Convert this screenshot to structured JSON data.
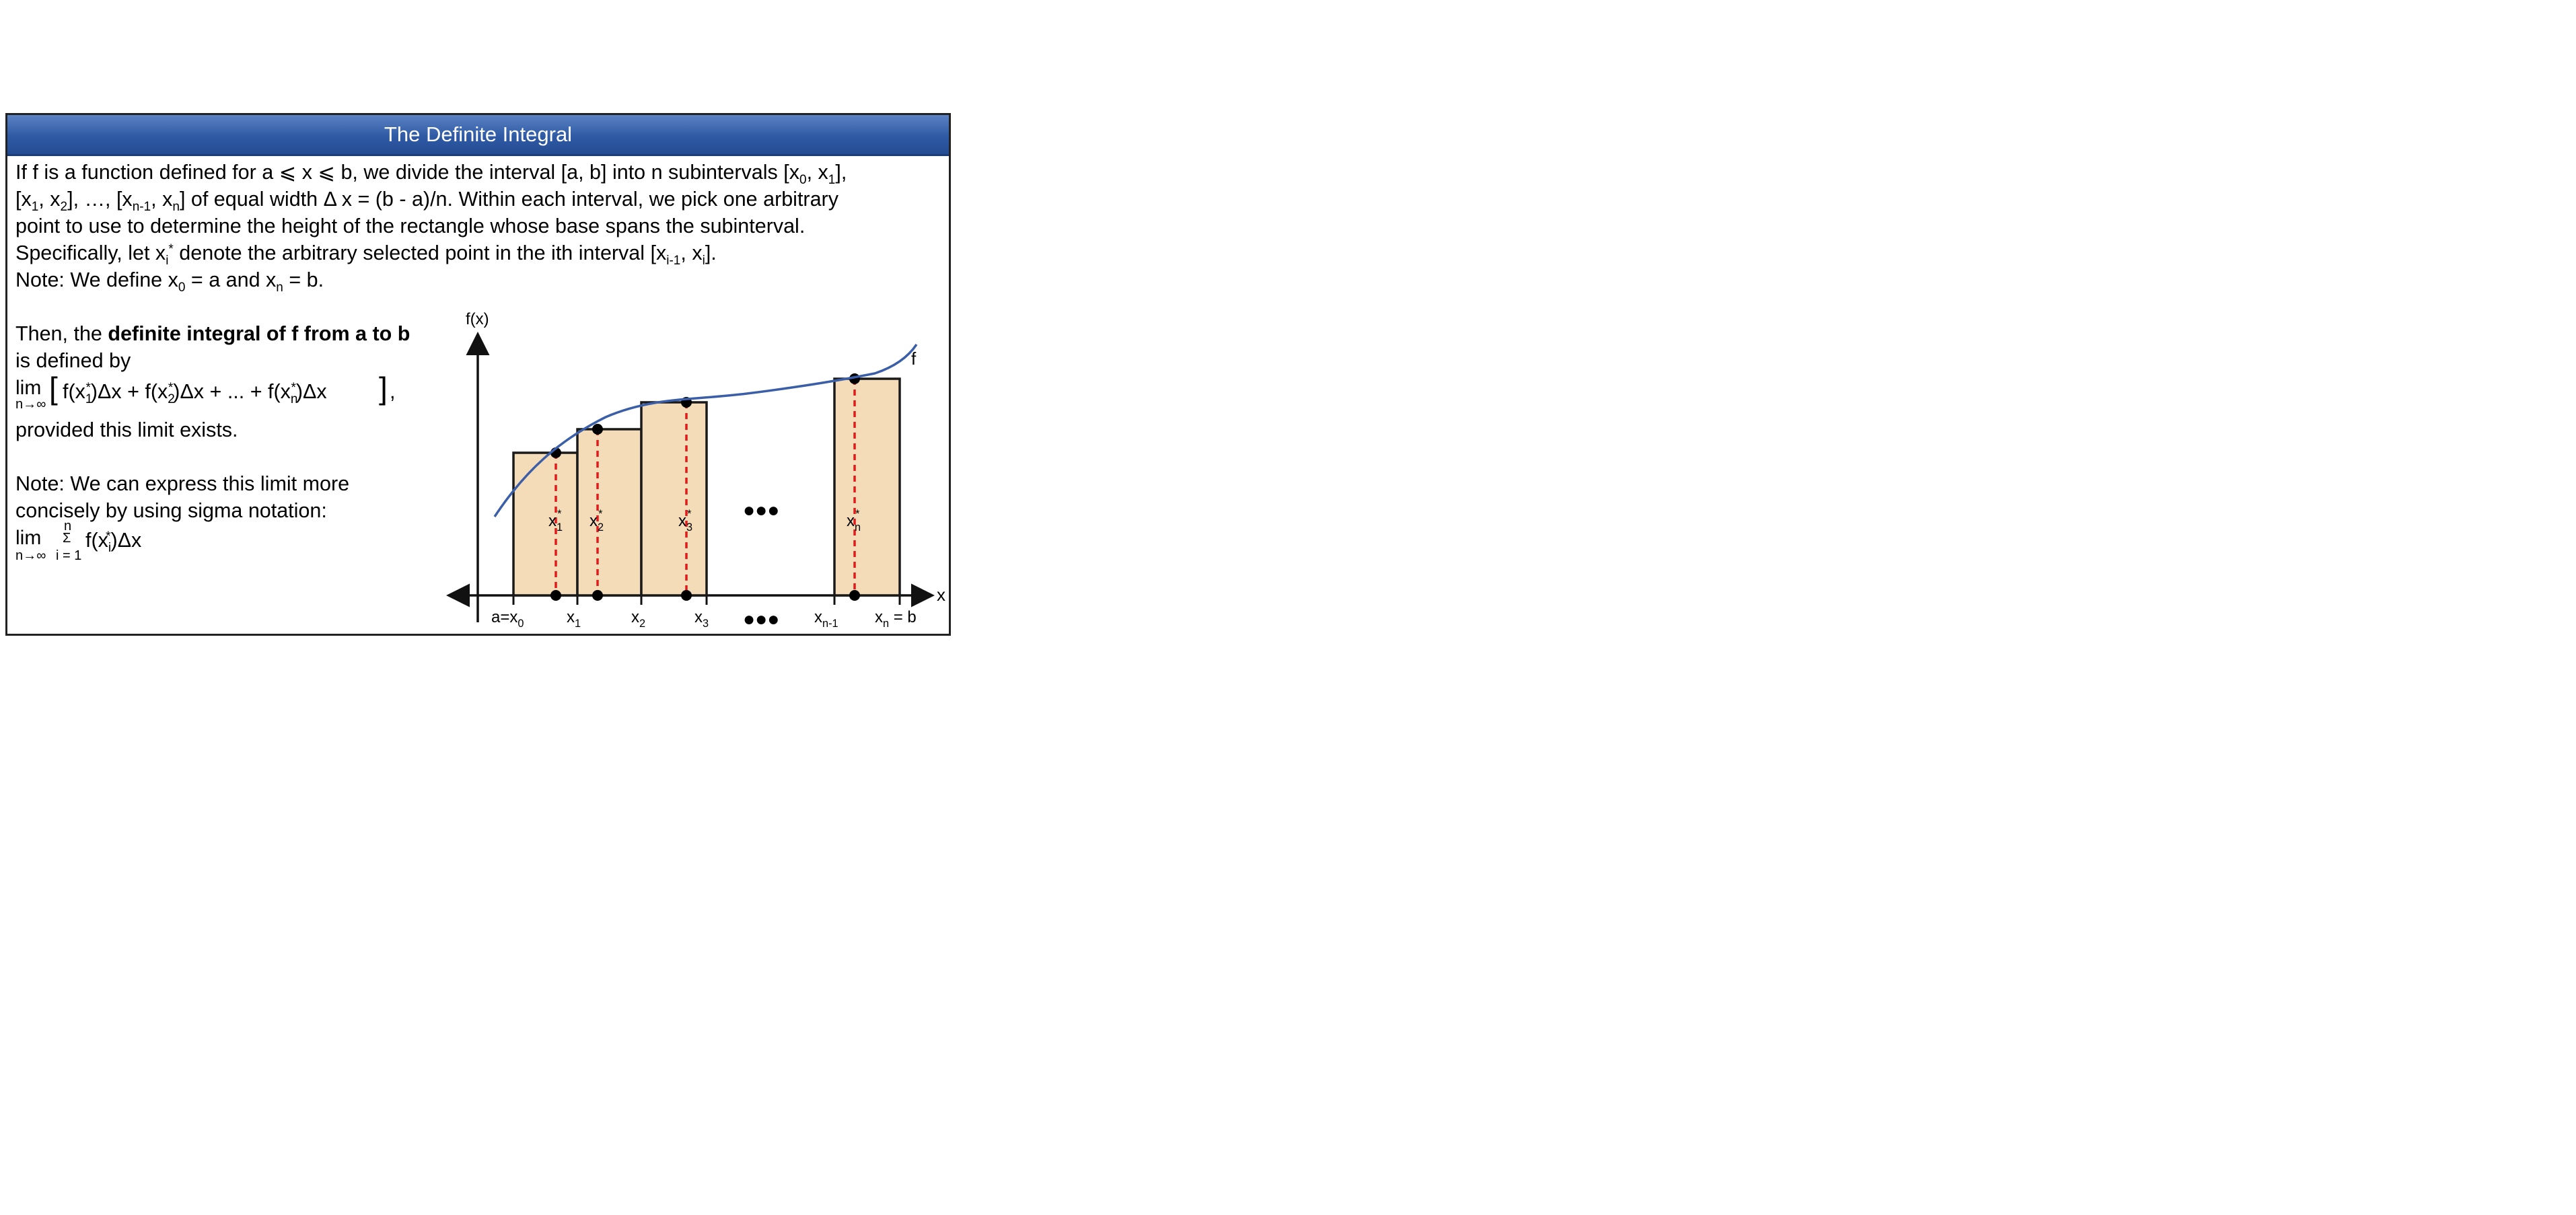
{
  "title": "The Definite Integral",
  "intro": {
    "line1_a": "If f is a function defined for a ",
    "le1": "⩽",
    "line1_b": " x ",
    "le2": "⩽",
    "line1_c": " b, we divide the interval [a, b] into n subintervals [x",
    "sub0": "0",
    "line1_d": ", x",
    "sub1": "1",
    "line1_e": "],",
    "line2_a": "[x",
    "line2_sub1": "1",
    "line2_b": ", x",
    "line2_sub2": "2",
    "line2_c": "], …, [x",
    "line2_subn1": "n-1",
    "line2_d": ", x",
    "line2_subn": "n",
    "line2_e": "] of equal width  Δ x = (b - a)/n.  Within each interval, we pick one arbitrary",
    "line3": "point to use to determine the height of the rectangle whose base spans the subinterval.",
    "line4_a": "Specifically, let x",
    "line4_subi": "i",
    "line4_supstar": "*",
    "line4_b": " denote the arbitrary selected point in the ith interval [x",
    "line4_subi1": "i-1",
    "line4_c": ", x",
    "line4_subi2": "i",
    "line4_d": "].",
    "line5_a": "Note: We define x",
    "line5_sub0": "0",
    "line5_b": " = a and x",
    "line5_subn": "n",
    "line5_c": " = b."
  },
  "definition": {
    "then": "Then, the ",
    "bold": "definite integral of f from a to b",
    "is_defined": "is defined by",
    "lim": "lim",
    "lim_sub": "n→∞",
    "expr_a": "f(x",
    "expr_sub1": "1",
    "expr_b": ")Δx + f(x",
    "expr_sub2": "2",
    "expr_c": ")Δx + ... + f(x",
    "expr_subn": "n",
    "expr_d": ")Δx",
    "star": "*",
    "comma": ",",
    "provided": "provided this limit exists."
  },
  "note2": {
    "line1": "Note:  We can express this limit more",
    "line2": "concisely by using sigma notation:",
    "lim": "lim",
    "lim_sub": "n→∞",
    "sigma": "Σ",
    "sigma_top": "n",
    "sigma_bottom": "i = 1",
    "expr_a": "f(x",
    "expr_sub": "i",
    "expr_b": ")Δx",
    "star": "*"
  },
  "diagram": {
    "y_axis_label": "f(x)",
    "x_axis_label": "x",
    "curve_label": "f",
    "ellipsis": "●●●",
    "colors": {
      "curve": "#3a5ea8",
      "rect_fill": "#f5dcb8",
      "rect_stroke": "#1a1a1a",
      "dash": "#e01b1b",
      "axis": "#111111"
    },
    "sample_labels": [
      {
        "base": "x",
        "sub": "1",
        "sup": "*"
      },
      {
        "base": "x",
        "sub": "2",
        "sup": "*"
      },
      {
        "base": "x",
        "sub": "3",
        "sup": "*"
      },
      {
        "base": "x",
        "sub": "n",
        "sup": "*"
      }
    ],
    "tick_labels": [
      {
        "base": "a=x",
        "sub": "0"
      },
      {
        "base": "x",
        "sub": "1"
      },
      {
        "base": "x",
        "sub": "2"
      },
      {
        "base": "x",
        "sub": "3"
      },
      {
        "base": "x",
        "sub": "n-1"
      },
      {
        "base": "x",
        "sub": "n",
        "tail": " = b"
      }
    ]
  }
}
